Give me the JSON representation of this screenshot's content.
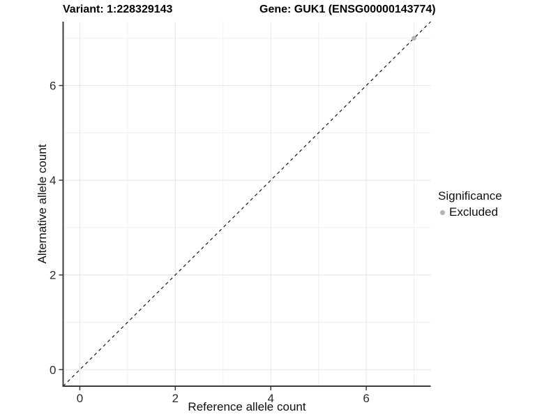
{
  "chart_data": {
    "type": "scatter",
    "title_left": "Variant: 1:228329143",
    "title_right": "Gene: GUK1 (ENSG00000143774)",
    "xlabel": "Reference allele count",
    "ylabel": "Alternative allele count",
    "xlim": [
      -0.35,
      7.35
    ],
    "ylim": [
      -0.35,
      7.35
    ],
    "x_ticks": [
      0,
      2,
      4,
      6
    ],
    "y_ticks": [
      0,
      2,
      4,
      6
    ],
    "minor_ticks": [
      1,
      3,
      5,
      7
    ],
    "grid": "major and minor gridlines on, white background",
    "reference_line": {
      "equation": "y = x",
      "style": "dashed",
      "color": "#141414"
    },
    "series": [
      {
        "name": "Excluded",
        "color": "#b4b4b4",
        "points": [
          [
            7,
            7
          ]
        ]
      }
    ],
    "legend": {
      "title": "Significance",
      "position": "right",
      "entries": [
        {
          "label": "Excluded",
          "color": "#b4b4b4"
        }
      ]
    },
    "colors": {
      "axis_line": "#3c3c3c",
      "grid_major": "#e4e4e4",
      "grid_minor": "#f0f0f0",
      "tick_text": "#2b2b2b"
    }
  }
}
